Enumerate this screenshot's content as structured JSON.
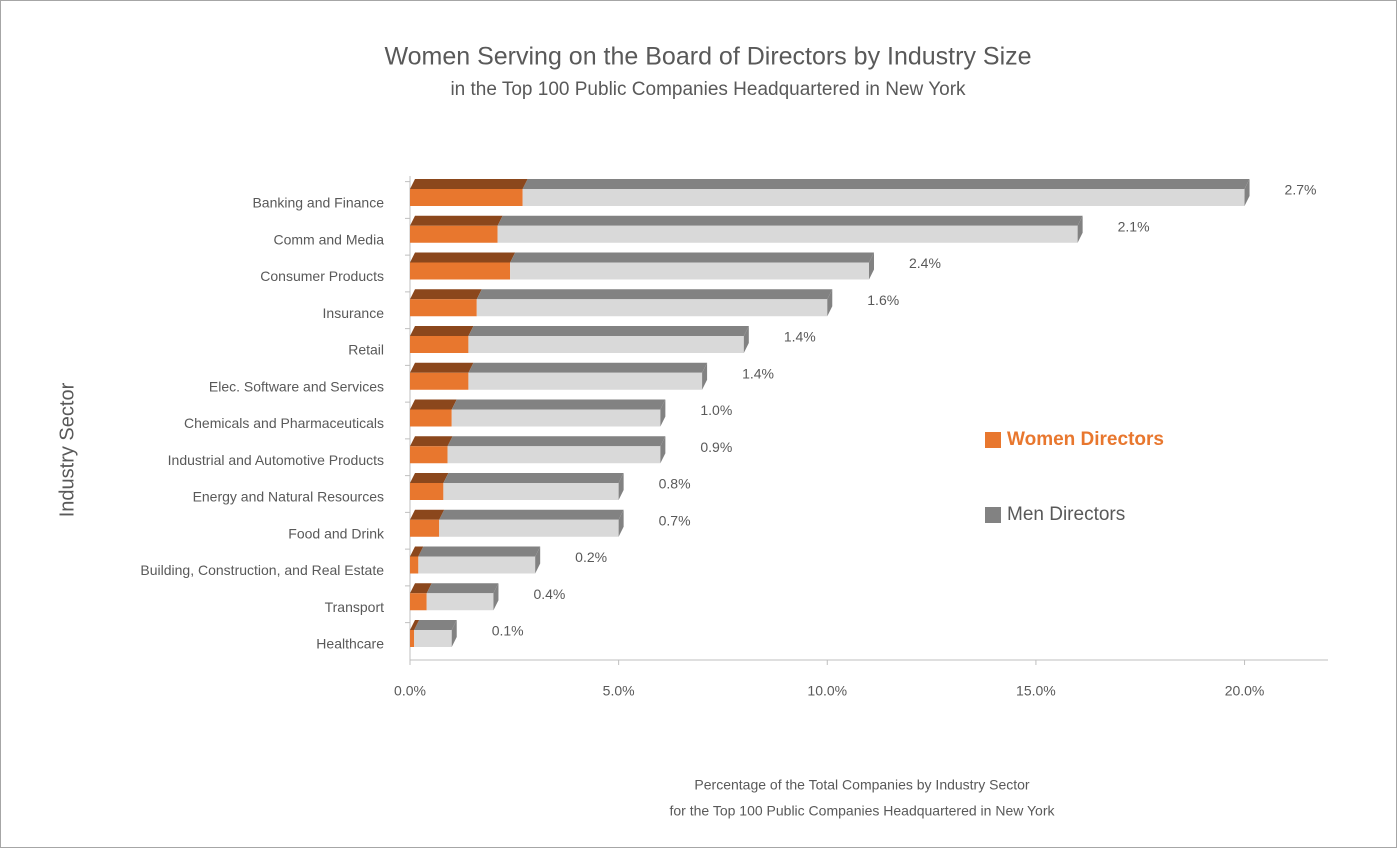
{
  "chart_data": {
    "type": "bar3d_stacked_horizontal",
    "title": "Women Serving on the Board of Directors by Industry Size",
    "subtitle": "in the Top 100 Public Companies Headquartered in New York",
    "y_label": "Industry Sector",
    "x_label": [
      "Percentage of the Total Companies by Industry Sector",
      "for the Top 100 Public Companies Headquartered in New York"
    ],
    "categories": [
      "Banking and Finance",
      "Comm and Media",
      "Consumer Products",
      "Insurance",
      "Retail",
      "Elec. Software and Services",
      "Chemicals and Pharmaceuticals",
      "Industrial and Automotive Products",
      "Energy and Natural Resources",
      "Food and Drink",
      "Building, Construction, and Real Estate",
      "Transport",
      "Healthcare"
    ],
    "series": [
      {
        "name": "Women Directors",
        "color": "#e8772e",
        "values": [
          2.7,
          2.1,
          2.4,
          1.6,
          1.4,
          1.4,
          1.0,
          0.9,
          0.8,
          0.7,
          0.2,
          0.4,
          0.1
        ],
        "value_labels": [
          "2.7%",
          "2.1%",
          "2.4%",
          "1.6%",
          "1.4%",
          "1.4%",
          "1.0%",
          "0.9%",
          "0.8%",
          "0.7%",
          "0.2%",
          "0.4%",
          "0.1%"
        ]
      },
      {
        "name": "Men Directors",
        "color": "#d9d9d9",
        "values": [
          17.3,
          13.9,
          8.6,
          8.4,
          6.6,
          5.6,
          5.0,
          5.1,
          4.2,
          4.3,
          2.8,
          1.6,
          0.9
        ]
      }
    ],
    "xlim": [
      0,
      22
    ],
    "xticks": [
      {
        "value": 0,
        "label": "0.0%"
      },
      {
        "value": 5,
        "label": "5.0%"
      },
      {
        "value": 10,
        "label": "10.0%"
      },
      {
        "value": 15,
        "label": "15.0%"
      },
      {
        "value": 20,
        "label": "20.0%"
      }
    ],
    "legend": "right"
  }
}
